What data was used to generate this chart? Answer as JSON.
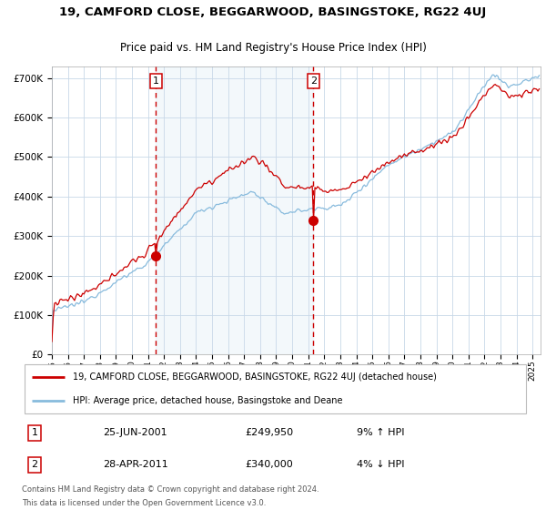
{
  "title": "19, CAMFORD CLOSE, BEGGARWOOD, BASINGSTOKE, RG22 4UJ",
  "subtitle": "Price paid vs. HM Land Registry's House Price Index (HPI)",
  "bg_color": "#ffffff",
  "plot_bg_color": "#ffffff",
  "shade_color": "#d8e8f5",
  "grid_color": "#c8d8e8",
  "sale1_x": 2001.486,
  "sale2_x": 2011.322,
  "sale1_price": 249950,
  "sale2_price": 340000,
  "hpi_line_color": "#88bbdd",
  "price_line_color": "#cc0000",
  "marker_color": "#cc0000",
  "dashed_line_color": "#cc0000",
  "ylim": [
    0,
    730000
  ],
  "xlim_start": 1995.0,
  "xlim_end": 2025.5,
  "footer1": "Contains HM Land Registry data © Crown copyright and database right 2024.",
  "footer2": "This data is licensed under the Open Government Licence v3.0.",
  "legend1": "19, CAMFORD CLOSE, BEGGARWOOD, BASINGSTOKE, RG22 4UJ (detached house)",
  "legend2": "HPI: Average price, detached house, Basingstoke and Deane"
}
